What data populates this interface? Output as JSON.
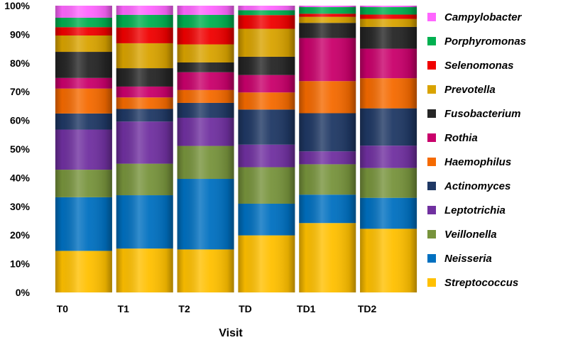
{
  "chart_data": {
    "type": "bar",
    "stacked": true,
    "title": "",
    "xlabel": "Visit",
    "ylabel": "",
    "ylim": [
      0,
      100
    ],
    "yticks": [
      "0%",
      "10%",
      "20%",
      "30%",
      "40%",
      "50%",
      "60%",
      "70%",
      "80%",
      "90%",
      "100%"
    ],
    "categories": [
      "T0",
      "T1",
      "T2",
      "TD",
      "TD1",
      "TD2"
    ],
    "legend_position": "right",
    "grid": false,
    "series": [
      {
        "name": "Streptococcus",
        "color": "#FFC000",
        "values": [
          14.5,
          15.3,
          15.0,
          20.0,
          24.2,
          22.2
        ]
      },
      {
        "name": "Neisseria",
        "color": "#0070C0",
        "values": [
          18.7,
          18.6,
          24.6,
          11.1,
          9.9,
          10.8
        ]
      },
      {
        "name": "Veillonella",
        "color": "#77933C",
        "values": [
          9.6,
          11.0,
          11.5,
          12.8,
          10.6,
          10.4
        ]
      },
      {
        "name": "Leptotrichia",
        "color": "#7030A0",
        "values": [
          14.0,
          14.7,
          9.8,
          7.9,
          4.5,
          7.8
        ]
      },
      {
        "name": "Actinomyces",
        "color": "#1F3864",
        "values": [
          5.6,
          4.4,
          5.2,
          12.3,
          13.3,
          13.0
        ]
      },
      {
        "name": "Haemophilus",
        "color": "#F56A00",
        "values": [
          8.7,
          4.0,
          4.5,
          6.0,
          11.2,
          10.5
        ]
      },
      {
        "name": "Rothia",
        "color": "#C9006B",
        "values": [
          3.7,
          3.8,
          6.2,
          6.1,
          15.0,
          10.3
        ]
      },
      {
        "name": "Fusobacterium",
        "color": "#262626",
        "values": [
          9.1,
          6.4,
          3.4,
          6.4,
          5.3,
          7.6
        ]
      },
      {
        "name": "Prevotella",
        "color": "#D9A300",
        "values": [
          5.7,
          8.7,
          6.3,
          9.8,
          2.1,
          2.8
        ]
      },
      {
        "name": "Selenomonas",
        "color": "#F00000",
        "values": [
          2.9,
          5.5,
          5.8,
          4.8,
          1.1,
          1.5
        ]
      },
      {
        "name": "Porphyromonas",
        "color": "#00B050",
        "values": [
          3.3,
          4.4,
          4.5,
          1.7,
          2.3,
          2.6
        ]
      },
      {
        "name": "Campylobacter",
        "color": "#FF66FF",
        "values": [
          4.2,
          3.2,
          3.2,
          1.6,
          0.5,
          0.5
        ]
      }
    ]
  }
}
